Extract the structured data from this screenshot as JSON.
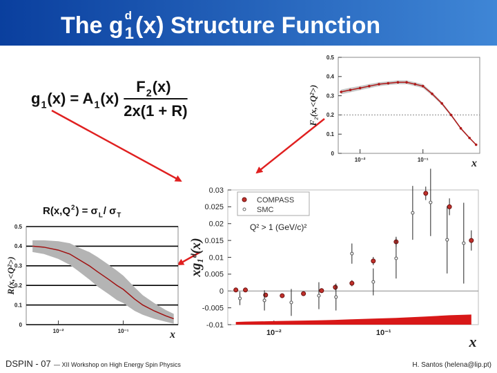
{
  "title": {
    "lead": "The g",
    "sup": "d",
    "sub": "1",
    "rest": "(x) Structure Function"
  },
  "g1_formula": {
    "parts": [
      "g",
      "1",
      "(x) = A",
      "1",
      "(x)"
    ],
    "numerator": [
      "F",
      "2",
      "(x)"
    ],
    "denominator": "2x(1 + R)"
  },
  "r_formula": {
    "parts": [
      "R(x,Q",
      "2",
      ") = σ",
      "L",
      " / σ",
      "T"
    ]
  },
  "footer": {
    "left": "DSPIN - 07",
    "middle": "— XII Workshop on High Energy Spin Physics",
    "right": "H. Santos (helena@lip.pt)"
  },
  "chart_data": [
    {
      "type": "line",
      "ylabel": "F₂(x,<Q²>)",
      "xlabel": "x",
      "xscale": "log",
      "markers": true,
      "grid": false,
      "color": "#b01818",
      "band_color": "#c8c8c8",
      "x": [
        0.005,
        0.007,
        0.01,
        0.014,
        0.02,
        0.028,
        0.04,
        0.055,
        0.075,
        0.1,
        0.14,
        0.2,
        0.28,
        0.4,
        0.55,
        0.7
      ],
      "values": [
        0.32,
        0.33,
        0.34,
        0.35,
        0.36,
        0.365,
        0.37,
        0.37,
        0.36,
        0.35,
        0.31,
        0.26,
        0.2,
        0.13,
        0.08,
        0.045
      ],
      "errors": [
        0.012,
        0.012,
        0.011,
        0.011,
        0.01,
        0.01,
        0.01,
        0.01,
        0.01,
        0.01,
        0.009,
        0.008,
        0.007,
        0.006,
        0.005,
        0.004
      ],
      "reference_line": 0.2,
      "xlim": [
        0.0045,
        0.8
      ],
      "xticks": [
        {
          "value": 0.01,
          "label": "10⁻²"
        },
        {
          "value": 0.1,
          "label": "10⁻¹"
        }
      ],
      "ylim": [
        0,
        0.5
      ],
      "yticks": [
        0,
        0.1,
        0.2,
        0.3,
        0.4,
        0.5
      ]
    },
    {
      "type": "line",
      "ylabel": "R(x,<Q²>)",
      "xlabel": "x",
      "xscale": "log",
      "markers": false,
      "grid": true,
      "color": "#a01010",
      "band_color": "#b4b4b4",
      "x": [
        0.004,
        0.006,
        0.01,
        0.015,
        0.02,
        0.03,
        0.04,
        0.06,
        0.08,
        0.1,
        0.15,
        0.2,
        0.3,
        0.45,
        0.6
      ],
      "values": [
        0.4,
        0.395,
        0.38,
        0.36,
        0.335,
        0.3,
        0.27,
        0.23,
        0.2,
        0.18,
        0.13,
        0.1,
        0.07,
        0.045,
        0.03
      ],
      "errors": [
        0.03,
        0.035,
        0.045,
        0.055,
        0.06,
        0.07,
        0.075,
        0.075,
        0.075,
        0.07,
        0.06,
        0.05,
        0.04,
        0.03,
        0.025
      ],
      "xlim": [
        0.0032,
        0.7
      ],
      "xticks": [
        {
          "value": 0.01,
          "label": "10⁻²"
        },
        {
          "value": 0.1,
          "label": "10⁻¹"
        }
      ],
      "ylim": [
        0,
        0.5
      ],
      "yticks": [
        0,
        0.1,
        0.2,
        0.3,
        0.4,
        0.5
      ]
    },
    {
      "type": "scatter",
      "ylabel": "xg₁ᵈ(x)",
      "xlabel": "x",
      "xscale": "log",
      "legend": "upper left",
      "annotation": "Q² > 1 (GeV/c)²",
      "reference_line": 0,
      "series": [
        {
          "name": "COMPASS",
          "color": "#c0302a",
          "x": [
            0.0045,
            0.0055,
            0.0084,
            0.0119,
            0.0186,
            0.0272,
            0.0363,
            0.0514,
            0.0805,
            0.13,
            0.242,
            0.398,
            0.63
          ],
          "values": [
            0.0003,
            0.0003,
            -0.0012,
            -0.0014,
            -0.0008,
            0.0001,
            0.0011,
            0.0023,
            0.0089,
            0.0146,
            0.029,
            0.025,
            0.015
          ],
          "errors": [
            0.0005,
            0.0005,
            0.0005,
            0.0006,
            0.0006,
            0.0007,
            0.0008,
            0.0009,
            0.0012,
            0.0015,
            0.002,
            0.0025,
            0.003
          ]
        },
        {
          "name": "SMC",
          "color": "#666666",
          "x": [
            0.0049,
            0.0082,
            0.0144,
            0.0257,
            0.0368,
            0.0514,
            0.0805,
            0.13,
            0.184,
            0.268,
            0.379,
            0.537
          ],
          "values": [
            -0.0022,
            -0.0028,
            -0.0034,
            -0.0014,
            -0.0018,
            0.0111,
            0.0027,
            0.0097,
            0.0232,
            0.0263,
            0.0152,
            0.0142
          ],
          "errors": [
            0.002,
            0.003,
            0.004,
            0.004,
            0.004,
            0.003,
            0.004,
            0.006,
            0.008,
            0.01,
            0.01,
            0.012
          ]
        }
      ],
      "systematic": {
        "color": "#d81818",
        "values": [
          0.0008,
          0.0009,
          0.001,
          0.0011,
          0.0012,
          0.0013,
          0.0014,
          0.0016,
          0.0018,
          0.002,
          0.0024,
          0.0028,
          0.003
        ]
      },
      "xlim": [
        0.0038,
        0.73
      ],
      "xticks": [
        {
          "value": 0.01,
          "label": "10⁻²"
        },
        {
          "value": 0.1,
          "label": "10⁻¹"
        }
      ],
      "ylim": [
        -0.01,
        0.03
      ],
      "yticks": [
        -0.01,
        -0.005,
        0,
        0.005,
        0.01,
        0.015,
        0.02,
        0.025,
        0.03
      ]
    }
  ]
}
